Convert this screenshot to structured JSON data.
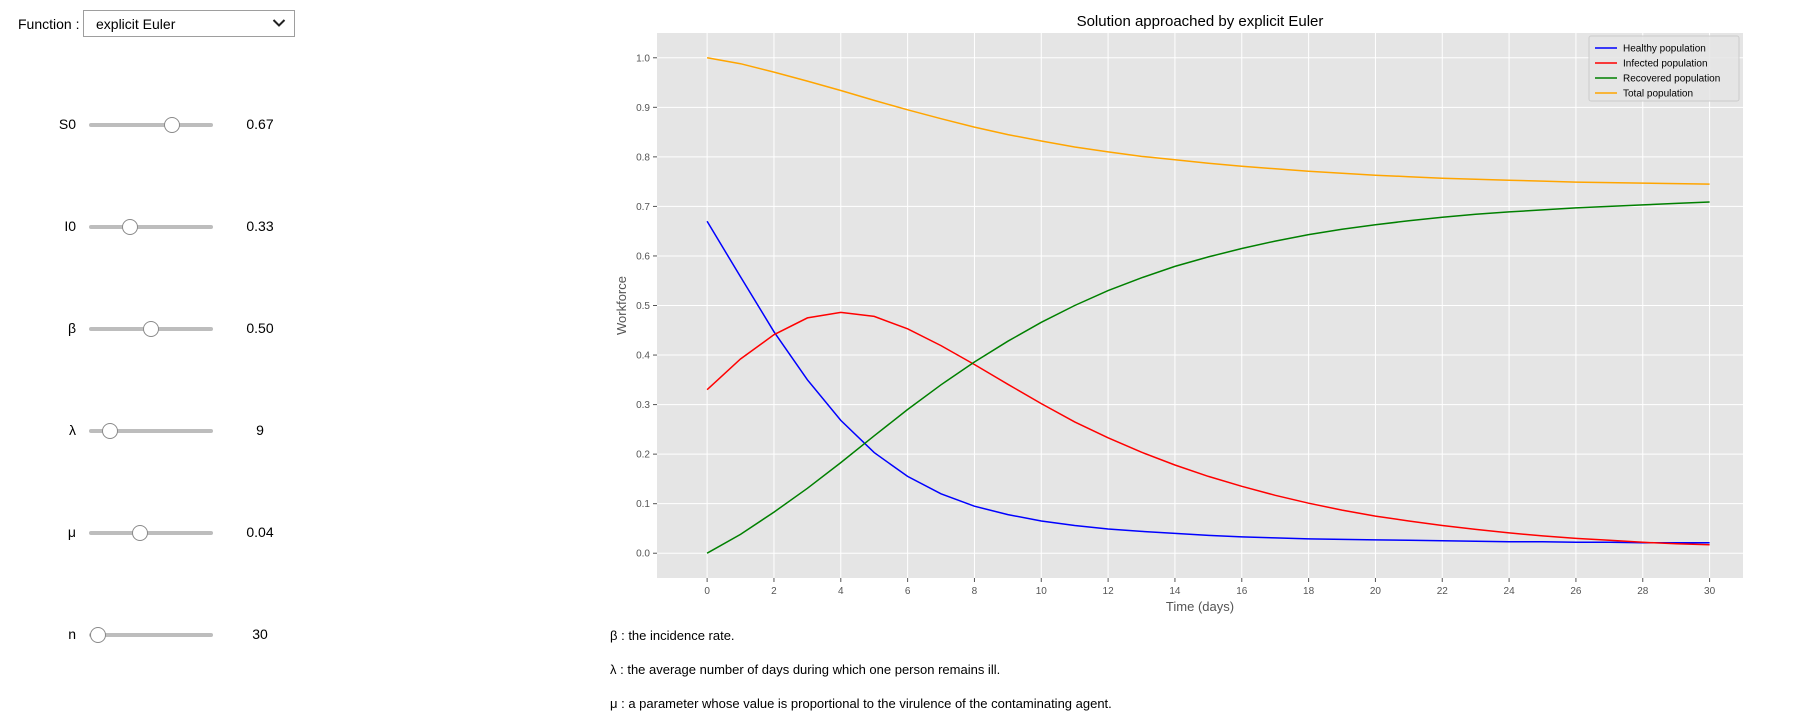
{
  "controls": {
    "function_label": "Function :",
    "function_value": "explicit Euler",
    "sliders": [
      {
        "name": "s0",
        "label": "S0",
        "value_text": "0.67",
        "fraction": 0.67
      },
      {
        "name": "i0",
        "label": "I0",
        "value_text": "0.33",
        "fraction": 0.33
      },
      {
        "name": "beta",
        "label": "β",
        "value_text": "0.50",
        "fraction": 0.5
      },
      {
        "name": "lambda",
        "label": "λ",
        "value_text": "9",
        "fraction": 0.17
      },
      {
        "name": "mu",
        "label": "μ",
        "value_text": "0.04",
        "fraction": 0.41
      },
      {
        "name": "n",
        "label": "n",
        "value_text": "30",
        "fraction": 0.07
      }
    ]
  },
  "descriptions": {
    "beta": "β : the incidence rate.",
    "lambda": "λ : the average number of days during which one person remains ill.",
    "mu": "μ : a parameter whose value is proportional to the virulence of the contaminating agent."
  },
  "chart_data": {
    "type": "line",
    "title": "Solution approached by explicit Euler",
    "xlabel": "Time (days)",
    "ylabel": "Workforce",
    "xlim": [
      -1.5,
      31
    ],
    "ylim": [
      -0.05,
      1.05
    ],
    "xticks": [
      0,
      2,
      4,
      6,
      8,
      10,
      12,
      14,
      16,
      18,
      20,
      22,
      24,
      26,
      28,
      30
    ],
    "yticks": [
      0.0,
      0.1,
      0.2,
      0.3,
      0.4,
      0.5,
      0.6,
      0.7,
      0.8,
      0.9,
      1.0
    ],
    "grid": true,
    "legend_position": "top-right",
    "background": "#e5e5e5",
    "x": [
      0,
      1,
      2,
      3,
      4,
      5,
      6,
      7,
      8,
      9,
      10,
      11,
      12,
      13,
      14,
      15,
      16,
      17,
      18,
      19,
      20,
      21,
      22,
      23,
      24,
      25,
      26,
      27,
      28,
      29,
      30
    ],
    "series": [
      {
        "name": "Healthy population",
        "color": "#0000ff",
        "values": [
          0.67,
          0.558,
          0.447,
          0.35,
          0.268,
          0.203,
          0.155,
          0.12,
          0.095,
          0.078,
          0.065,
          0.056,
          0.049,
          0.044,
          0.04,
          0.036,
          0.033,
          0.031,
          0.029,
          0.028,
          0.027,
          0.026,
          0.025,
          0.024,
          0.023,
          0.023,
          0.022,
          0.022,
          0.021,
          0.021,
          0.021
        ]
      },
      {
        "name": "Infected population",
        "color": "#ff0000",
        "values": [
          0.33,
          0.392,
          0.441,
          0.475,
          0.486,
          0.478,
          0.453,
          0.419,
          0.381,
          0.341,
          0.302,
          0.265,
          0.233,
          0.204,
          0.178,
          0.155,
          0.135,
          0.117,
          0.101,
          0.087,
          0.075,
          0.065,
          0.056,
          0.048,
          0.041,
          0.035,
          0.03,
          0.026,
          0.022,
          0.019,
          0.017
        ]
      },
      {
        "name": "Recovered population",
        "color": "#008000",
        "values": [
          0.0,
          0.038,
          0.083,
          0.131,
          0.183,
          0.237,
          0.29,
          0.34,
          0.386,
          0.428,
          0.466,
          0.5,
          0.53,
          0.556,
          0.579,
          0.598,
          0.615,
          0.63,
          0.643,
          0.654,
          0.663,
          0.671,
          0.678,
          0.684,
          0.689,
          0.693,
          0.697,
          0.7,
          0.703,
          0.706,
          0.709
        ]
      },
      {
        "name": "Total population",
        "color": "#ffa500",
        "values": [
          1.0,
          0.988,
          0.971,
          0.953,
          0.934,
          0.914,
          0.895,
          0.877,
          0.86,
          0.845,
          0.832,
          0.82,
          0.81,
          0.801,
          0.794,
          0.787,
          0.781,
          0.776,
          0.771,
          0.767,
          0.763,
          0.76,
          0.757,
          0.755,
          0.753,
          0.751,
          0.749,
          0.748,
          0.747,
          0.746,
          0.745
        ]
      }
    ]
  }
}
